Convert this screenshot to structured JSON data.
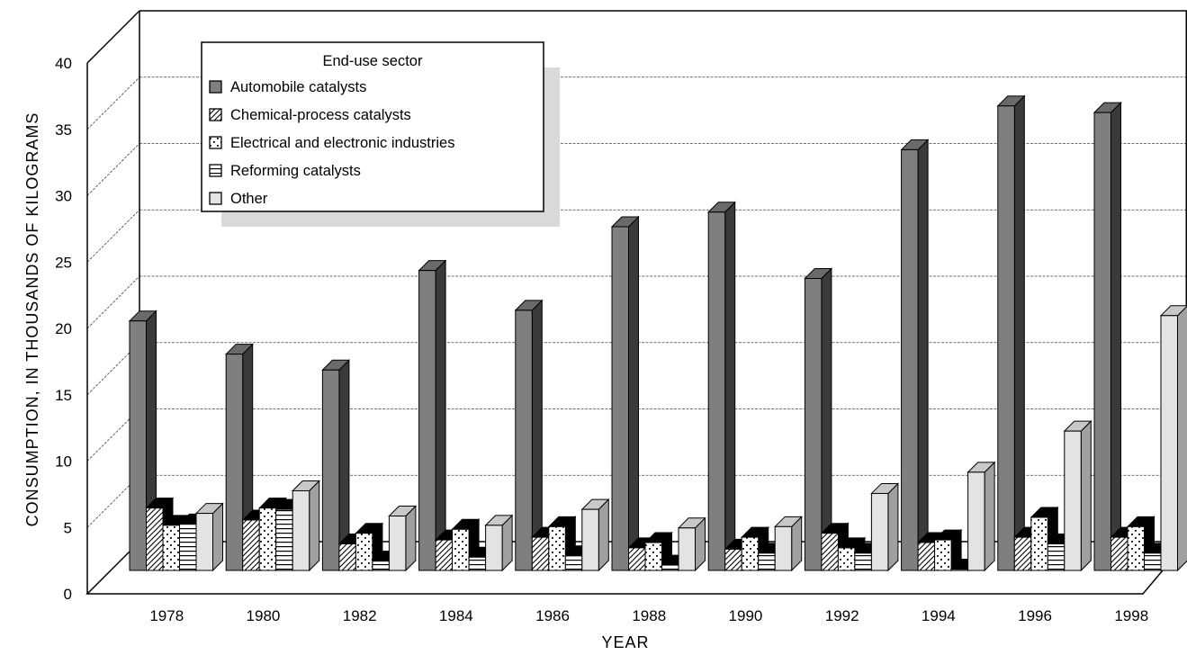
{
  "chart_data": {
    "type": "bar",
    "xlabel": "YEAR",
    "ylabel": "CONSUMPTION, IN THOUSANDS OF KILOGRAMS",
    "ylim": [
      0,
      40
    ],
    "yticks": [
      0,
      5,
      10,
      15,
      20,
      25,
      30,
      35,
      40
    ],
    "grid": true,
    "legend_position": "top-left",
    "legend_title": "End-use sector",
    "categories": [
      "1978",
      "1980",
      "1982",
      "1984",
      "1986",
      "1988",
      "1990",
      "1992",
      "1994",
      "1996",
      "1998"
    ],
    "series": [
      {
        "name": "Automobile catalysts",
        "pattern": "solid-dark",
        "color": "#808080",
        "values": [
          18.8,
          16.3,
          15.1,
          22.6,
          19.6,
          25.9,
          27.0,
          22.0,
          31.7,
          35.0,
          34.5
        ]
      },
      {
        "name": "Chemical-process catalysts",
        "pattern": "diagonal-hatch",
        "color": "#ffffff",
        "values": [
          4.7,
          3.8,
          2.0,
          2.3,
          2.5,
          1.7,
          1.6,
          2.8,
          2.1,
          2.5,
          2.5
        ]
      },
      {
        "name": "Electrical and electronic industries",
        "pattern": "dots",
        "color": "#ffffff",
        "values": [
          3.4,
          4.7,
          2.8,
          3.1,
          3.3,
          2.1,
          2.5,
          1.7,
          2.3,
          4.0,
          3.3
        ]
      },
      {
        "name": "Reforming catalysts",
        "pattern": "horizontal-lines",
        "color": "#ffffff",
        "values": [
          3.5,
          4.6,
          0.7,
          1.0,
          1.1,
          0.4,
          1.3,
          1.3,
          0.1,
          2.0,
          1.3
        ]
      },
      {
        "name": "Other",
        "pattern": "solid-light",
        "color": "#e0e0e0",
        "values": [
          4.3,
          6.0,
          4.1,
          3.4,
          4.6,
          3.2,
          3.3,
          5.8,
          7.4,
          10.5,
          19.2
        ]
      }
    ]
  }
}
